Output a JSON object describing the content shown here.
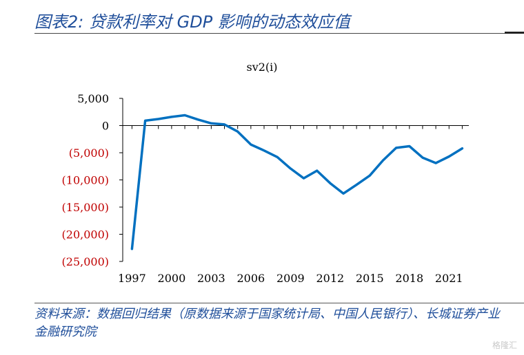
{
  "header": {
    "title": "图表2:  贷款利率对 GDP 影响的动态效应值"
  },
  "footer": {
    "source": "资料来源：数据回归结果（原数据来源于国家统计局、中国人民银行）、长城证券产业金融研究院"
  },
  "watermark": "格隆汇",
  "colors": {
    "line": "#0070c0",
    "negative_tick": "#c00000",
    "positive_tick": "#000000",
    "title": "#1f4e9a"
  },
  "chart_data": {
    "type": "line",
    "title": "sv2(i)",
    "xlabel": "",
    "ylabel": "",
    "ylim": [
      -25000,
      5000
    ],
    "yticks": [
      5000,
      0,
      -5000,
      -10000,
      -15000,
      -20000,
      -25000
    ],
    "ytick_labels": [
      "5,000",
      "0",
      "(5,000)",
      "(10,000)",
      "(15,000)",
      "(20,000)",
      "(25,000)"
    ],
    "xticks": [
      1997,
      2000,
      2003,
      2006,
      2009,
      2012,
      2015,
      2018,
      2021
    ],
    "xtick_labels": [
      "1997",
      "2000",
      "2003",
      "2006",
      "2009",
      "2012",
      "2015",
      "2018",
      "2021"
    ],
    "xlim": [
      1996.3,
      2022.5
    ],
    "grid": false,
    "legend": "none",
    "x": [
      1997,
      1998,
      1999,
      2000,
      2001,
      2002,
      2003,
      2004,
      2005,
      2006,
      2007,
      2008,
      2009,
      2010,
      2011,
      2012,
      2013,
      2014,
      2015,
      2016,
      2017,
      2018,
      2019,
      2020,
      2021,
      2022
    ],
    "series": [
      {
        "values": [
          -22700,
          900,
          1200,
          1600,
          1900,
          1100,
          400,
          200,
          -1100,
          -3500,
          -4600,
          -5800,
          -7900,
          -9700,
          -8300,
          -10600,
          -12500,
          -10900,
          -9200,
          -6400,
          -4100,
          -3800,
          -5900,
          -6900,
          -5700,
          -4200
        ]
      }
    ]
  }
}
